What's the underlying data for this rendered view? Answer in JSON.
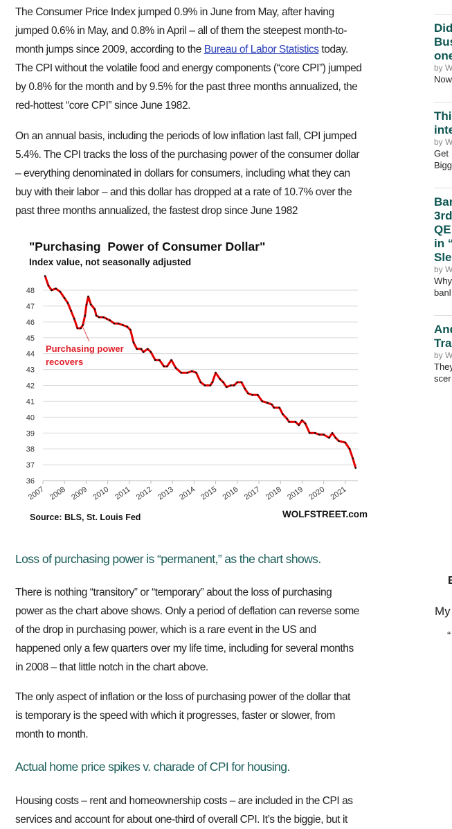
{
  "article": {
    "p1": [
      "The Consumer Price Index jumped 0.9% in June from May, after having",
      "jumped 0.6% in May, and 0.8% in April – all of them the steepest month-to-",
      [
        "month jumps since 2009, according to the ",
        "Bureau of Labor Statistics",
        " today."
      ],
      "The CPI without the volatile food and energy components (“core CPI”) jumped",
      "by 0.8% for the month and by 9.5% for the past three months annualized, the",
      "red-hottest “core CPI” since June 1982."
    ],
    "p2": [
      "On an annual basis, including the periods of low inflation last fall, CPI jumped",
      "5.4%. The CPI tracks the loss of the purchasing power of the consumer dollar",
      "– everything denominated in dollars for consumers, including what they can",
      "buy with their labor – and this dollar has dropped at a rate of 10.7% over the",
      "past three months annualized, the fastest drop since June 1982"
    ],
    "h1": "Loss of purchasing power is “permanent,” as the chart shows.",
    "p3": [
      "There is nothing “transitory” or “temporary” about the loss of purchasing",
      "power as the chart above shows. Only a period of deflation can reverse some",
      "of the drop in purchasing power, which is a rare event in the US and",
      "happened only a few quarters over my life time, including for several months",
      "in 2008 – that little notch in the chart above."
    ],
    "p4": [
      "The only aspect of inflation or the loss of purchasing power of the dollar that",
      "is temporary is the speed with which it progresses, faster or slower, from",
      "month to month."
    ],
    "h2": "Actual home price spikes v. charade of CPI for housing.",
    "p5": [
      "Housing costs – rent and homeownership costs – are included in the CPI as",
      "services and account for about one-third of overall CPI. It’s the biggie, but it"
    ]
  },
  "sidebar": {
    "items": [
      {
        "title": [
          "Did",
          "Bus",
          "one"
        ],
        "by": "by W",
        "excerpt": [
          "Now"
        ]
      },
      {
        "title": [
          "Thi",
          "inte"
        ],
        "by": "by W",
        "excerpt": [
          "Get",
          "Bigg"
        ]
      },
      {
        "title": [
          "Bar",
          "3rd",
          "QE",
          "in “",
          "Sle"
        ],
        "by": "by W",
        "excerpt": [
          "Why",
          "banl"
        ]
      },
      {
        "title": [
          "And",
          "Tra"
        ],
        "by": "by W",
        "excerpt": [
          "They",
          "scer"
        ]
      }
    ],
    "far": [
      "E",
      "My",
      "“"
    ]
  },
  "colors": {
    "heading": "#1b5e5a",
    "link": "#2b3fb8",
    "line": "#e00000",
    "annotation": "#e0202a"
  },
  "chart_data": {
    "type": "line",
    "title": "\"Purchasing  Power of Consumer Dollar\"",
    "subtitle": "Index value, not seasonally adjusted",
    "source": "Source: BLS, St. Louis Fed",
    "brand": "WOLFSTREET.com",
    "annotation": [
      "Purchasing power",
      "recovers"
    ],
    "ylim": [
      36,
      48
    ],
    "yticks": [
      36,
      37,
      38,
      39,
      40,
      41,
      42,
      43,
      44,
      45,
      46,
      47,
      48
    ],
    "xticks": [
      "2007",
      "2008",
      "2009",
      "2010",
      "2011",
      "2012",
      "2013",
      "2014",
      "2015",
      "2016",
      "2017",
      "2018",
      "2019",
      "2020",
      "2021"
    ],
    "grid": true,
    "series": [
      {
        "name": "Purchasing Power of Consumer Dollar",
        "x": [
          2007.1,
          2007.25,
          2007.4,
          2007.6,
          2007.8,
          2008.0,
          2008.15,
          2008.3,
          2008.45,
          2008.6,
          2008.75,
          2008.85,
          2008.95,
          2009.02,
          2009.1,
          2009.22,
          2009.4,
          2009.47,
          2009.6,
          2009.8,
          2009.95,
          2010.1,
          2010.3,
          2010.5,
          2010.7,
          2010.9,
          2011.05,
          2011.2,
          2011.35,
          2011.55,
          2011.65,
          2011.85,
          2012.0,
          2012.2,
          2012.4,
          2012.6,
          2012.75,
          2012.95,
          2013.15,
          2013.4,
          2013.7,
          2013.9,
          2014.1,
          2014.3,
          2014.5,
          2014.75,
          2014.85,
          2015.0,
          2015.2,
          2015.35,
          2015.5,
          2015.7,
          2015.85,
          2016.0,
          2016.2,
          2016.35,
          2016.5,
          2016.7,
          2016.95,
          2017.15,
          2017.4,
          2017.6,
          2017.7,
          2017.95,
          2018.1,
          2018.3,
          2018.4,
          2018.7,
          2018.85,
          2019.0,
          2019.15,
          2019.35,
          2019.6,
          2019.8,
          2020.0,
          2020.25,
          2020.4,
          2020.55,
          2020.7,
          2021.0,
          2021.2,
          2021.35,
          2021.48
        ],
        "y": [
          48.9,
          48.3,
          48.0,
          48.1,
          47.9,
          47.5,
          47.2,
          46.7,
          46.2,
          45.6,
          45.6,
          45.8,
          46.4,
          47.1,
          47.6,
          47.1,
          46.8,
          46.4,
          46.3,
          46.3,
          46.2,
          46.1,
          45.9,
          45.9,
          45.8,
          45.7,
          45.5,
          44.7,
          44.3,
          44.3,
          44.1,
          44.3,
          44.1,
          43.6,
          43.6,
          43.2,
          43.2,
          43.6,
          43.1,
          42.8,
          42.8,
          42.9,
          42.8,
          42.2,
          42.0,
          42.0,
          42.2,
          42.8,
          42.4,
          42.2,
          41.9,
          42.0,
          42.0,
          42.2,
          42.2,
          41.8,
          41.5,
          41.4,
          41.4,
          41.0,
          40.9,
          40.8,
          40.6,
          40.6,
          40.2,
          39.9,
          39.7,
          39.7,
          39.5,
          39.8,
          39.6,
          39.0,
          39.0,
          38.9,
          38.9,
          38.7,
          39.0,
          38.7,
          38.5,
          38.4,
          38.0,
          37.4,
          36.8
        ]
      }
    ]
  }
}
